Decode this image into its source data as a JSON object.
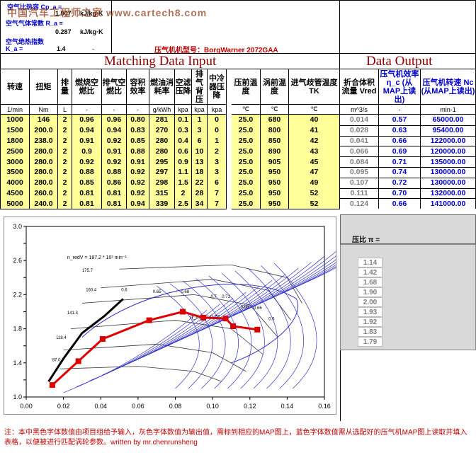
{
  "watermark": "中国汽车工程师之家 www.cartech8.com",
  "params": {
    "row1_label": "空气比热容 Cp_a =",
    "row1_value": "1.007",
    "row1_unit": "kJ/kg·K",
    "row2_label": "空气气体常数 R_a =",
    "row2_value": "0.287",
    "row2_unit": "kJ/kg·K",
    "row3_label": "空气绝热指数K_a =",
    "row3_value": "1.4",
    "row3_unit": "-"
  },
  "compressor_model": "压气机机型号：BorgWarner 2072GAA",
  "input_title": "Matching Data Input",
  "output_title": "Data Output",
  "input_headers": [
    "转速",
    "扭矩",
    "排量",
    "燃烧空燃比",
    "排气空燃比",
    "容积效率",
    "燃油消耗率",
    "空滤压降",
    "排气背压",
    "中冷器压降",
    "压前温度",
    "涡前温度",
    "进气歧管温度TK"
  ],
  "input_units": [
    "1/min",
    "Nm",
    "L",
    "-",
    "-",
    "-",
    "g/kWh",
    "kpa",
    "kpa",
    "kpa",
    "℃",
    "℃",
    "℃"
  ],
  "output_headers": [
    "折合体积流量 Vred",
    "压气机效率η_c (从MAP上读出)",
    "压气机转速 Nc (从MAP上读出)"
  ],
  "output_units": [
    "m^3/s",
    "-",
    "min-1"
  ],
  "rows": [
    [
      "1000",
      "146",
      "2",
      "0.96",
      "0.96",
      "0.80",
      "281",
      "0.1",
      "1",
      "0",
      "25.0",
      "680",
      "40",
      "0.014",
      "0.57",
      "65000.00"
    ],
    [
      "1500",
      "200.0",
      "2",
      "0.94",
      "0.94",
      "0.83",
      "270",
      "0.3",
      "3",
      "0",
      "25.0",
      "800",
      "41",
      "0.028",
      "0.63",
      "95400.00"
    ],
    [
      "1800",
      "238.0",
      "2",
      "0.91",
      "0.92",
      "0.85",
      "280",
      "0.4",
      "6",
      "1",
      "25.0",
      "850",
      "42",
      "0.041",
      "0.66",
      "122000.00"
    ],
    [
      "2500",
      "280.0",
      "2",
      "0.9",
      "0.91",
      "0.88",
      "280",
      "0.6",
      "10",
      "2",
      "25.0",
      "890",
      "43",
      "0.066",
      "0.69",
      "120000.00"
    ],
    [
      "3000",
      "280.0",
      "2",
      "0.92",
      "0.92",
      "0.91",
      "295",
      "0.9",
      "13",
      "3",
      "25.0",
      "905",
      "45",
      "0.084",
      "0.71",
      "135000.00"
    ],
    [
      "3500",
      "280.0",
      "2",
      "0.88",
      "0.88",
      "0.92",
      "297",
      "1.1",
      "18",
      "3",
      "25.0",
      "950",
      "47",
      "0.095",
      "0.74",
      "130000.00"
    ],
    [
      "4000",
      "280.0",
      "2",
      "0.85",
      "0.86",
      "0.92",
      "298",
      "1.5",
      "22",
      "6",
      "25.0",
      "950",
      "49",
      "0.107",
      "0.72",
      "130000.00"
    ],
    [
      "4500",
      "260.0",
      "2",
      "0.81",
      "0.81",
      "0.92",
      "315",
      "2",
      "28",
      "7",
      "25.0",
      "950",
      "52",
      "0.111",
      "0.70",
      "132000.00"
    ],
    [
      "5000",
      "240.0",
      "2",
      "0.81",
      "0.81",
      "0.94",
      "339",
      "2.5",
      "34",
      "7",
      "25.0",
      "950",
      "52",
      "0.124",
      "0.66",
      "141000.00"
    ]
  ],
  "pressure_ratio_label": "压比 π =",
  "pressure_ratio_unit": "-",
  "pressure_ratios": [
    "1.14",
    "1.42",
    "1.68",
    "1.90",
    "2.00",
    "1.93",
    "1.92",
    "1.83",
    "1.79"
  ],
  "footnote": "注：本中黑色字体数值由项目组给予输入，灰色字体数值为输出值，需标到相应的MAP图上，蓝色字体数值需从选配好的压气机MAP图上读取并填入表格，以便被进行匹配涡轮参数。written by mr.chenrunsheng",
  "colors": {
    "title": "#8b0000",
    "blue": "#0000cc",
    "gray": "#808080",
    "yellow": "#ffff99",
    "operating_line": "#dd0000",
    "surge_line": "#000000",
    "map_lines": "#3333cc"
  },
  "chart_data": {
    "type": "line",
    "title": "",
    "xlabel": "",
    "ylabel": "",
    "xlim": [
      0.0,
      0.16
    ],
    "ylim": [
      1.0,
      3.0
    ],
    "x_ticks": [
      "0.00",
      "0.02",
      "0.04",
      "0.06",
      "0.08",
      "0.10",
      "0.12",
      "0.14",
      "0.16"
    ],
    "y_ticks": [
      "1.0",
      "1.2",
      "1.4",
      "1.6",
      "1.8",
      "2.0",
      "2.2",
      "2.4",
      "2.6",
      "2.8",
      "3.0"
    ],
    "grid": false,
    "series": [
      {
        "name": "",
        "x": [
          0.014,
          0.028,
          0.041,
          0.066,
          0.084,
          0.095,
          0.107,
          0.111,
          0.124
        ],
        "y": [
          1.14,
          1.42,
          1.68,
          1.9,
          2.0,
          1.93,
          1.92,
          1.83,
          1.79
        ]
      }
    ],
    "map_annotations": [
      "n_redV = 187.2 * 10³ min⁻¹",
      "175.7",
      "160.4",
      "141.3",
      "118.4",
      "87.0",
      "η_adV = 0.72",
      "0.6",
      "0.65",
      "0.68",
      "0.7",
      "0.71",
      "0.69",
      "0.66",
      "0.6"
    ]
  }
}
